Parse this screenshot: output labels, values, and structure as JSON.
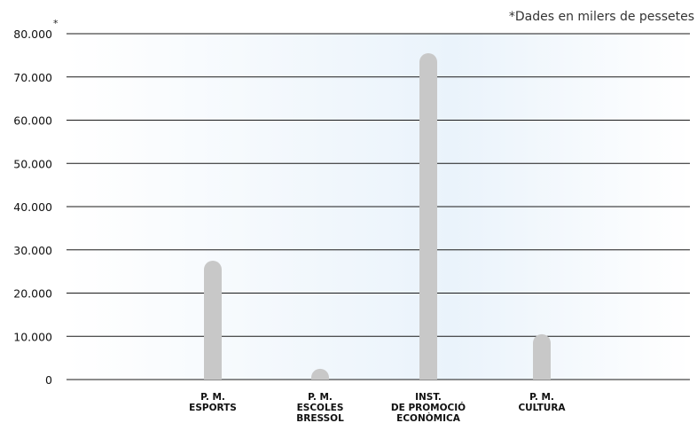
{
  "note": "*Dades en milers de pessetes",
  "axis_asterisk": "*",
  "colors": {
    "bar": "#c8c8c8",
    "grid": "#1a1a1a",
    "background_tint": "#eaf3fb"
  },
  "chart_data": {
    "type": "bar",
    "title": "",
    "xlabel": "",
    "ylabel": "",
    "ylim": [
      0,
      80000
    ],
    "yticks": [
      0,
      10000,
      20000,
      30000,
      40000,
      50000,
      60000,
      70000,
      80000
    ],
    "ytick_labels": [
      "0",
      "10.000",
      "20.000",
      "30.000",
      "40.000",
      "50.000",
      "60.000",
      "70.000",
      "80.000"
    ],
    "grid": true,
    "categories": [
      [
        "P. M.",
        "ESPORTS"
      ],
      [
        "P. M.",
        "ESCOLES",
        "BRESSOL"
      ],
      [
        "INST.",
        "DE PROMOCIÓ",
        "ECONÒMICA"
      ],
      [
        "P. M.",
        "CULTURA"
      ]
    ],
    "values": [
      27500,
      2500,
      75500,
      10500
    ]
  }
}
